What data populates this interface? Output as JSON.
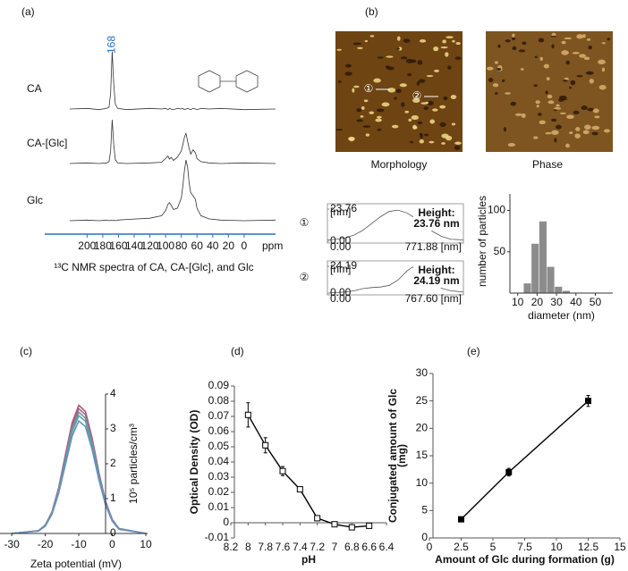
{
  "panel_labels": [
    "(a)",
    "(b)",
    "(c)",
    "(d)",
    "(e)"
  ],
  "afm_images": {
    "captions": [
      "Morphology",
      "Phase"
    ],
    "markers": [
      "①",
      "②"
    ]
  },
  "chart_data": [
    {
      "type": "spectra",
      "caption": "¹³C NMR spectra of CA, CA-[Glc], and Glc",
      "xlabel": "ppm",
      "peak_annotations": [
        168
      ],
      "axis_color": "#2a6ebb",
      "color": "#333333",
      "xlim": [
        222,
        -40
      ],
      "xticks": [
        200,
        180,
        160,
        140,
        120,
        100,
        80,
        60,
        40,
        20,
        0
      ],
      "x": [
        222,
        200,
        185,
        175,
        172,
        170,
        168,
        166,
        164,
        161,
        150,
        120,
        105,
        100,
        97,
        95,
        93,
        90,
        85,
        80,
        78,
        76,
        74,
        72,
        70,
        68,
        65,
        62,
        60,
        55,
        45,
        30,
        0,
        -40
      ],
      "series": [
        {
          "name": "CA",
          "values": [
            0,
            1,
            -1,
            1,
            3,
            25,
            92,
            40,
            8,
            1,
            -1,
            1,
            0,
            1,
            -1,
            1,
            0,
            -1,
            1,
            0,
            1,
            -1,
            0,
            1,
            0,
            -1,
            1,
            0,
            -1,
            1,
            0,
            1,
            -1,
            0
          ]
        },
        {
          "name": "CA-[Glc]",
          "values": [
            0,
            1,
            0,
            1,
            3,
            20,
            70,
            30,
            6,
            1,
            0,
            1,
            2,
            8,
            12,
            7,
            10,
            5,
            10,
            20,
            30,
            42,
            48,
            36,
            24,
            15,
            22,
            17,
            8,
            3,
            1,
            0,
            1,
            0
          ]
        },
        {
          "name": "Glc",
          "values": [
            0,
            1,
            0,
            1,
            0,
            1,
            0,
            1,
            0,
            1,
            2,
            4,
            8,
            16,
            26,
            29,
            25,
            18,
            20,
            36,
            56,
            80,
            97,
            86,
            60,
            45,
            40,
            34,
            20,
            8,
            3,
            1,
            0,
            1
          ]
        }
      ]
    },
    {
      "type": "profile",
      "marker": "①",
      "annotation": [
        "Height:",
        "23.76 nm"
      ],
      "yunit": "[nm]",
      "color": "#555555",
      "xlim": [
        0,
        771.88
      ],
      "ylim": [
        0,
        23.76
      ],
      "xticks": [
        {
          "value": 0,
          "label": "0.00"
        },
        {
          "value": 771.88,
          "label": "771.88 [nm]"
        }
      ],
      "yticks": [
        {
          "value": 0,
          "label": "0.00"
        },
        23.76
      ],
      "x": [
        0,
        50,
        100,
        150,
        200,
        250,
        300,
        350,
        400,
        450,
        500,
        550,
        600,
        650,
        700,
        771.88
      ],
      "values": [
        1,
        1.5,
        2.5,
        4.5,
        8,
        13,
        18,
        22,
        23,
        21,
        17,
        12,
        7,
        3.5,
        1.5,
        1
      ]
    },
    {
      "type": "profile",
      "marker": "②",
      "annotation": [
        "Height:",
        "24.19 nm"
      ],
      "yunit": "[nm]",
      "color": "#555555",
      "xlim": [
        0,
        767.6
      ],
      "ylim": [
        0,
        24.19
      ],
      "xticks": [
        {
          "value": 0,
          "label": "0.00"
        },
        {
          "value": 767.6,
          "label": "767.60 [nm]"
        }
      ],
      "yticks": [
        {
          "value": 0,
          "label": "0.00"
        },
        24.19
      ],
      "x": [
        0,
        50,
        100,
        150,
        200,
        250,
        300,
        350,
        400,
        450,
        480,
        520,
        560,
        600,
        650,
        700,
        767.6
      ],
      "values": [
        0,
        0.5,
        1,
        2,
        4,
        5,
        5.5,
        7,
        12,
        20,
        23.5,
        21,
        14,
        8,
        4,
        2,
        1
      ]
    },
    {
      "type": "histogram",
      "xlabel": "diameter (nm)",
      "ylabel": "number of particles",
      "color": "#8c8c8c",
      "bins": [
        13,
        17,
        21,
        25,
        29,
        33,
        37
      ],
      "values": [
        12,
        60,
        87,
        32,
        8,
        3
      ],
      "xlim": [
        6,
        59
      ],
      "xticks": [
        10,
        20,
        30,
        40,
        50
      ],
      "ylim": [
        0,
        120
      ],
      "yticks": [
        50,
        100
      ]
    },
    {
      "type": "line",
      "xlabel": "Zeta potential (mV)",
      "ylabel": "10⁵ particles/cm³",
      "y_axis_side": "right",
      "xlim": [
        -33.5,
        10
      ],
      "xticks": [
        -30,
        -20,
        -10,
        0,
        10
      ],
      "ylim": [
        0,
        4
      ],
      "yticks": [
        0,
        1,
        2,
        3,
        4
      ],
      "x": [
        -30,
        -22,
        -20,
        -18,
        -16,
        -14,
        -12,
        -10,
        -8,
        -6,
        -4,
        -2,
        0,
        2,
        10
      ],
      "series": [
        {
          "color": "#b5555f",
          "values": [
            0,
            0.08,
            0.24,
            0.62,
            1.31,
            2.25,
            3.17,
            3.68,
            3.5,
            2.73,
            1.75,
            0.92,
            0.4,
            0.14,
            0
          ]
        },
        {
          "color": "#8e6aa6",
          "values": [
            0,
            0.08,
            0.24,
            0.6,
            1.27,
            2.19,
            3.09,
            3.58,
            3.41,
            2.66,
            1.71,
            0.9,
            0.39,
            0.14,
            0
          ]
        },
        {
          "color": "#8a8a8a",
          "values": [
            0,
            0.07,
            0.23,
            0.59,
            1.24,
            2.12,
            3,
            3.48,
            3.31,
            2.59,
            1.66,
            0.87,
            0.38,
            0.13,
            0
          ]
        },
        {
          "color": "#4aa8a8",
          "values": [
            0,
            0.07,
            0.22,
            0.57,
            1.2,
            2.06,
            2.91,
            3.38,
            3.22,
            2.51,
            1.61,
            0.85,
            0.37,
            0.13,
            0
          ]
        },
        {
          "color": "#6a8fc0",
          "values": [
            0,
            0.07,
            0.21,
            0.55,
            1.15,
            1.97,
            2.79,
            3.23,
            3.07,
            2.4,
            1.54,
            0.81,
            0.35,
            0.12,
            0
          ]
        }
      ]
    },
    {
      "type": "errorline",
      "xlabel": "pH",
      "ylabel": "Optical Density (OD)",
      "marker": "open-square",
      "color": "#000000",
      "xlim": [
        8.2,
        6.4
      ],
      "xticks": [
        8.2,
        8,
        7.8,
        7.6,
        7.4,
        7.2,
        7,
        6.8,
        6.6,
        6.4
      ],
      "ylim": [
        -0.01,
        0.09
      ],
      "yticks": [
        -0.01,
        0,
        0.01,
        0.02,
        0.03,
        0.04,
        0.05,
        0.06,
        0.07,
        0.08,
        0.09
      ],
      "x": [
        8,
        7.8,
        7.6,
        7.4,
        7.2,
        7,
        6.8,
        6.6
      ],
      "values": [
        0.071,
        0.051,
        0.034,
        0.022,
        0.003,
        -0.001,
        -0.003,
        -0.002
      ],
      "errors": [
        0.008,
        0.005,
        0.003,
        0.001,
        0.001,
        0.001,
        0.001,
        0.001
      ]
    },
    {
      "type": "errorline",
      "xlabel": "Amount of Glc during formation (g)",
      "ylabel": [
        "Conjugated amount of Glc",
        "(mg)"
      ],
      "marker": "filled-square",
      "color": "#000000",
      "xlim": [
        0,
        15
      ],
      "xticks": [
        0,
        2.5,
        5,
        7.5,
        10,
        12.5,
        15
      ],
      "ylim": [
        0,
        30
      ],
      "yticks": [
        0,
        5,
        10,
        15,
        20,
        25,
        30
      ],
      "x": [
        2.5,
        6.25,
        12.5
      ],
      "values": [
        3.4,
        12,
        25
      ],
      "errors": [
        0.3,
        0.7,
        1.0
      ]
    }
  ]
}
